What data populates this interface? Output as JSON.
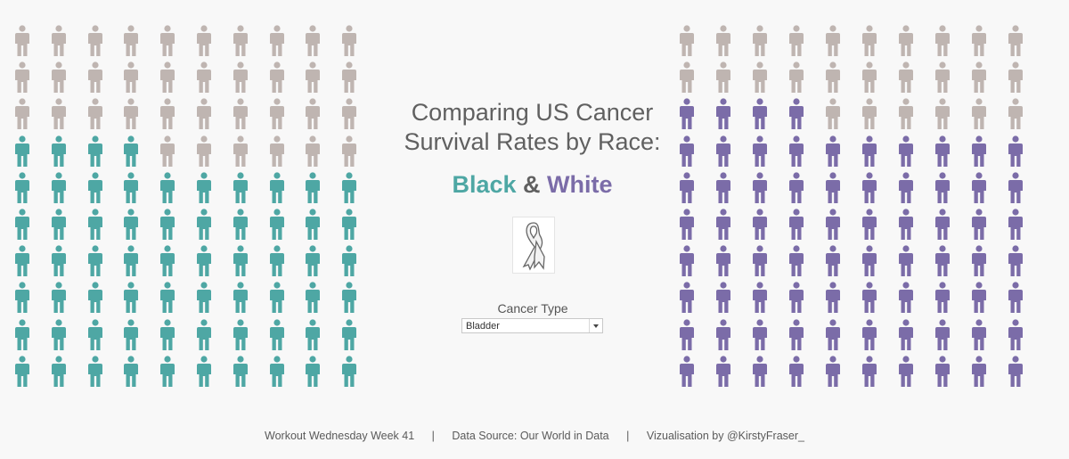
{
  "title": {
    "line1": "Comparing US Cancer",
    "line2": "Survival Rates by Race:"
  },
  "subtitle": {
    "black": "Black",
    "amp": "&",
    "white": "White"
  },
  "filter": {
    "label": "Cancer Type",
    "selected": "Bladder"
  },
  "footer": {
    "part1": "Workout Wednesday Week 41",
    "sep": "|",
    "part2": "Data Source: Our World in Data",
    "part3": "Vizualisation by @KirstyFraser_"
  },
  "colors": {
    "black_survived": "#4ea7a4",
    "white_survived": "#7b6ca8",
    "not_survived": "#bfb5b1"
  },
  "chart_data": [
    {
      "type": "pictogram",
      "series": "Black",
      "total": 100,
      "survived": 64,
      "grid": {
        "columns": 10,
        "rows": 10
      },
      "color": "#4ea7a4"
    },
    {
      "type": "pictogram",
      "series": "White",
      "total": 100,
      "survived": 74,
      "grid": {
        "columns": 10,
        "rows": 10
      },
      "color": "#7b6ca8"
    }
  ]
}
